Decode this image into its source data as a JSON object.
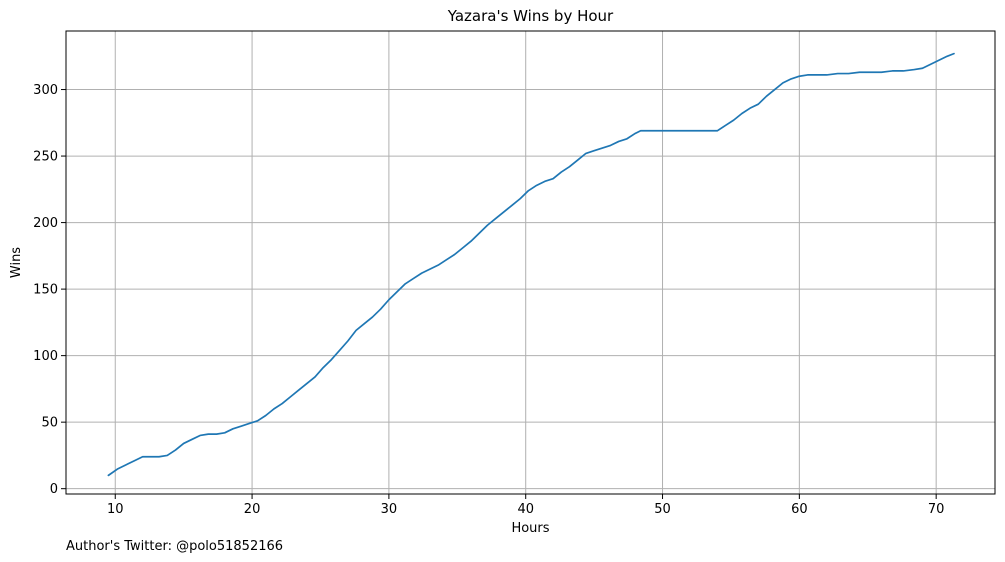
{
  "chart_data": {
    "type": "line",
    "title": "Yazara's Wins by Hour",
    "xlabel": "Hours",
    "ylabel": "Wins",
    "xlim": [
      6.4,
      74.3
    ],
    "ylim": [
      -4,
      344
    ],
    "x_ticks": [
      10,
      20,
      30,
      40,
      50,
      60,
      70
    ],
    "y_ticks": [
      0,
      50,
      100,
      150,
      200,
      250,
      300
    ],
    "grid": true,
    "line_color": "#1f77b4",
    "series": [
      {
        "points": [
          [
            9.5,
            10
          ],
          [
            10.2,
            15
          ],
          [
            10.8,
            18
          ],
          [
            11.4,
            21
          ],
          [
            12.0,
            24
          ],
          [
            12.6,
            24
          ],
          [
            13.2,
            24
          ],
          [
            13.8,
            25
          ],
          [
            14.4,
            29
          ],
          [
            15.0,
            34
          ],
          [
            15.6,
            37
          ],
          [
            16.2,
            40
          ],
          [
            16.8,
            41
          ],
          [
            17.4,
            41
          ],
          [
            18.0,
            42
          ],
          [
            18.6,
            45
          ],
          [
            19.2,
            47
          ],
          [
            19.8,
            49
          ],
          [
            20.4,
            51
          ],
          [
            21.0,
            55
          ],
          [
            21.6,
            60
          ],
          [
            22.2,
            64
          ],
          [
            22.8,
            69
          ],
          [
            23.4,
            74
          ],
          [
            24.0,
            79
          ],
          [
            24.6,
            84
          ],
          [
            25.2,
            91
          ],
          [
            25.8,
            97
          ],
          [
            26.4,
            104
          ],
          [
            27.0,
            111
          ],
          [
            27.6,
            119
          ],
          [
            28.2,
            124
          ],
          [
            28.8,
            129
          ],
          [
            29.4,
            135
          ],
          [
            30.0,
            142
          ],
          [
            30.6,
            148
          ],
          [
            31.2,
            154
          ],
          [
            31.8,
            158
          ],
          [
            32.4,
            162
          ],
          [
            33.0,
            165
          ],
          [
            33.6,
            168
          ],
          [
            34.2,
            172
          ],
          [
            34.8,
            176
          ],
          [
            35.4,
            181
          ],
          [
            36.0,
            186
          ],
          [
            36.6,
            192
          ],
          [
            37.2,
            198
          ],
          [
            37.8,
            203
          ],
          [
            38.4,
            208
          ],
          [
            39.0,
            213
          ],
          [
            39.6,
            218
          ],
          [
            40.2,
            224
          ],
          [
            40.8,
            228
          ],
          [
            41.4,
            231
          ],
          [
            42.0,
            233
          ],
          [
            42.6,
            238
          ],
          [
            43.2,
            242
          ],
          [
            43.8,
            247
          ],
          [
            44.4,
            252
          ],
          [
            45.0,
            254
          ],
          [
            45.6,
            256
          ],
          [
            46.2,
            258
          ],
          [
            46.8,
            261
          ],
          [
            47.4,
            263
          ],
          [
            48.0,
            267
          ],
          [
            48.4,
            269
          ],
          [
            50.0,
            269
          ],
          [
            52.0,
            269
          ],
          [
            54.0,
            269
          ],
          [
            54.6,
            273
          ],
          [
            55.2,
            277
          ],
          [
            55.8,
            282
          ],
          [
            56.4,
            286
          ],
          [
            57.0,
            289
          ],
          [
            57.6,
            295
          ],
          [
            58.2,
            300
          ],
          [
            58.8,
            305
          ],
          [
            59.4,
            308
          ],
          [
            60.0,
            310
          ],
          [
            60.6,
            311
          ],
          [
            61.2,
            311
          ],
          [
            62.0,
            311
          ],
          [
            62.8,
            312
          ],
          [
            63.6,
            312
          ],
          [
            64.4,
            313
          ],
          [
            65.2,
            313
          ],
          [
            66.0,
            313
          ],
          [
            66.8,
            314
          ],
          [
            67.6,
            314
          ],
          [
            68.4,
            315
          ],
          [
            69.0,
            316
          ],
          [
            69.6,
            319
          ],
          [
            70.2,
            322
          ],
          [
            70.8,
            325
          ],
          [
            71.3,
            327
          ]
        ]
      }
    ]
  },
  "footnote": "Author's Twitter: @polo51852166"
}
